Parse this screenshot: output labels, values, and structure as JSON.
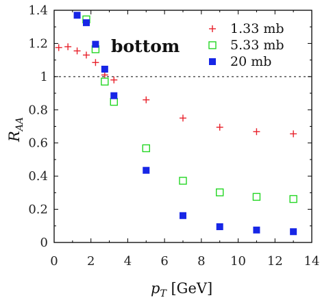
{
  "chart_data": {
    "type": "scatter",
    "title": "",
    "annotation": "bottom",
    "xlabel": {
      "main": "p",
      "sub": "T",
      "unit": " [GeV]"
    },
    "ylabel": {
      "main": "R",
      "sub": "AA"
    },
    "xlim": [
      0,
      14
    ],
    "ylim": [
      0,
      1.4
    ],
    "xticks": [
      0,
      2,
      4,
      6,
      8,
      10,
      12,
      14
    ],
    "yticks": [
      0,
      0.2,
      0.4,
      0.6,
      0.8,
      1,
      1.2,
      1.4
    ],
    "xtick_labels": [
      "0",
      "2",
      "4",
      "6",
      "8",
      "10",
      "12",
      "14"
    ],
    "ytick_labels": [
      "0",
      "0.2",
      "0.4",
      "0.6",
      "0.8",
      "1",
      "1.2",
      "1.4"
    ],
    "reference_line": {
      "y": 1.0,
      "style": "dotted"
    },
    "grid": false,
    "legend_position": "top-right",
    "series": [
      {
        "name": "1.33 mb",
        "marker": "plus",
        "color": "#e8202a",
        "x": [
          0.25,
          0.75,
          1.25,
          1.75,
          2.25,
          2.75,
          3.25,
          5.0,
          7.0,
          9.0,
          11.0,
          13.0
        ],
        "y": [
          1.175,
          1.18,
          1.155,
          1.13,
          1.085,
          1.01,
          0.98,
          0.86,
          0.75,
          0.695,
          0.668,
          0.655
        ]
      },
      {
        "name": "5.33 mb",
        "marker": "open-square",
        "color": "#22d622",
        "x": [
          1.75,
          2.25,
          2.75,
          3.25,
          5.0,
          7.0,
          9.0,
          11.0,
          13.0
        ],
        "y": [
          1.345,
          1.165,
          0.97,
          0.848,
          0.568,
          0.372,
          0.302,
          0.275,
          0.262
        ]
      },
      {
        "name": "20 mb",
        "marker": "filled-square",
        "color": "#1726e6",
        "x": [
          1.25,
          1.75,
          2.25,
          2.75,
          3.25,
          5.0,
          7.0,
          9.0,
          11.0,
          13.0
        ],
        "y": [
          1.37,
          1.325,
          1.195,
          1.045,
          0.885,
          0.435,
          0.162,
          0.095,
          0.075,
          0.065
        ]
      }
    ]
  }
}
